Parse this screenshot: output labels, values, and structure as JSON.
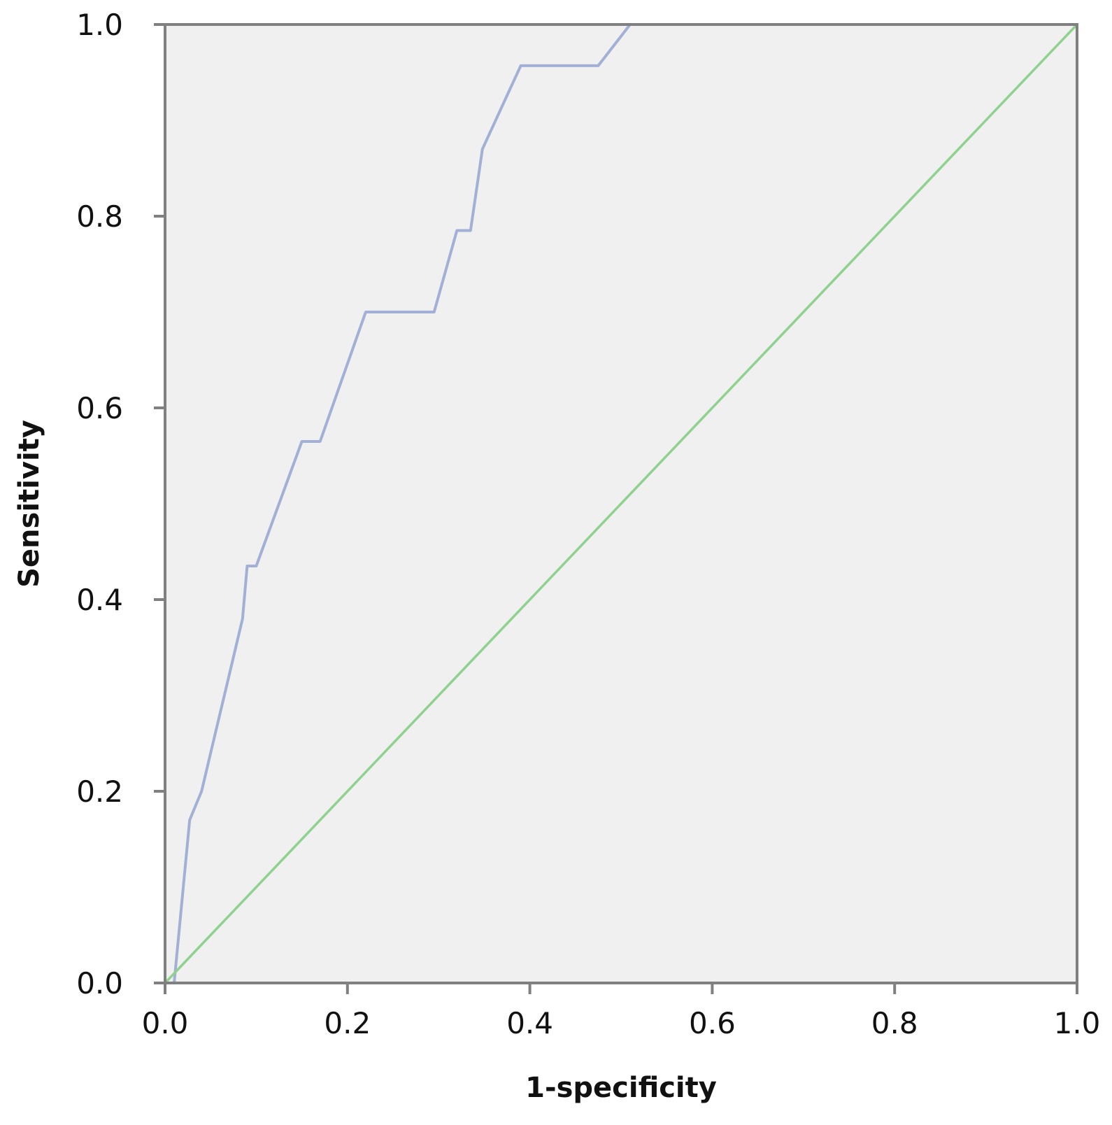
{
  "chart_data": {
    "type": "line",
    "title": "",
    "xlabel": "1-specificity",
    "ylabel": "Sensitivity",
    "xlim": [
      0.0,
      1.0
    ],
    "ylim": [
      0.0,
      1.0
    ],
    "x_ticks": [
      "0.0",
      "0.2",
      "0.4",
      "0.6",
      "0.8",
      "1.0"
    ],
    "y_ticks": [
      "0.0",
      "0.2",
      "0.4",
      "0.6",
      "0.8",
      "1.0"
    ],
    "grid": false,
    "legend": "none",
    "colors": {
      "plot_background": "#f0f0f0",
      "frame": "#808080",
      "roc_curve": "#a3b0d6",
      "reference_line": "#8fd18f"
    },
    "series": [
      {
        "points": [
          [
            0.0,
            0.0
          ],
          [
            0.01,
            0.0
          ],
          [
            0.027,
            0.17
          ],
          [
            0.04,
            0.2
          ],
          [
            0.055,
            0.26
          ],
          [
            0.07,
            0.32
          ],
          [
            0.085,
            0.38
          ],
          [
            0.09,
            0.435
          ],
          [
            0.1,
            0.435
          ],
          [
            0.125,
            0.5
          ],
          [
            0.15,
            0.565
          ],
          [
            0.17,
            0.565
          ],
          [
            0.22,
            0.7
          ],
          [
            0.295,
            0.7
          ],
          [
            0.32,
            0.785
          ],
          [
            0.335,
            0.785
          ],
          [
            0.348,
            0.87
          ],
          [
            0.39,
            0.957
          ],
          [
            0.475,
            0.957
          ],
          [
            0.51,
            1.0
          ],
          [
            1.0,
            1.0
          ]
        ]
      },
      {
        "points": [
          [
            0.0,
            0.0
          ],
          [
            1.0,
            1.0
          ]
        ]
      }
    ]
  }
}
